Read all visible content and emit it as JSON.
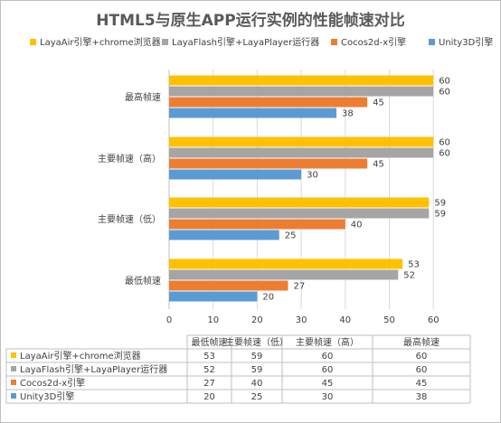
{
  "colors": {
    "series": [
      "#ffc000",
      "#a5a5a5",
      "#ed7d31",
      "#5b9bd5"
    ],
    "grid": "#d9d9d9",
    "text": "#404040",
    "title": "#595959"
  },
  "chart_data": {
    "type": "bar",
    "orientation": "horizontal",
    "title": "HTML5与原生APP运行实例的性能帧速对比",
    "categories": [
      "最低帧速",
      "主要帧速（低）",
      "主要帧速（高）",
      "最高帧速"
    ],
    "series": [
      {
        "name": "LayaAir引擎+chrome浏览器",
        "values": [
          53,
          59,
          60,
          60
        ]
      },
      {
        "name": "LayaFlash引擎+LayaPlayer运行器",
        "values": [
          52,
          59,
          60,
          60
        ]
      },
      {
        "name": "Cocos2d-x引擎",
        "values": [
          27,
          40,
          45,
          45
        ]
      },
      {
        "name": "Unity3D引擎",
        "values": [
          20,
          25,
          30,
          38
        ]
      }
    ],
    "xlim": [
      0,
      70
    ],
    "ticks": [
      0,
      10,
      20,
      30,
      40,
      50,
      60
    ],
    "grid": true,
    "legend_position": "top",
    "data_table": true
  }
}
